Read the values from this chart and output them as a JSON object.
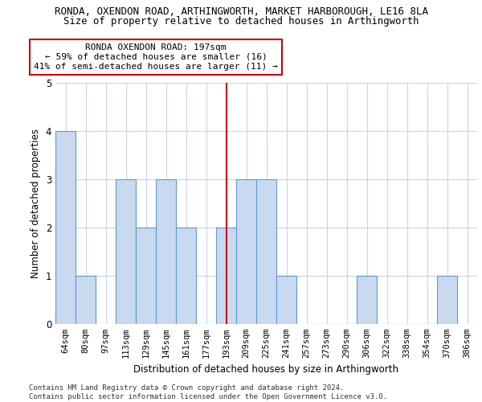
{
  "title_line1": "RONDA, OXENDON ROAD, ARTHINGWORTH, MARKET HARBOROUGH, LE16 8LA",
  "title_line2": "Size of property relative to detached houses in Arthingworth",
  "xlabel": "Distribution of detached houses by size in Arthingworth",
  "ylabel": "Number of detached properties",
  "categories": [
    "64sqm",
    "80sqm",
    "97sqm",
    "113sqm",
    "129sqm",
    "145sqm",
    "161sqm",
    "177sqm",
    "193sqm",
    "209sqm",
    "225sqm",
    "241sqm",
    "257sqm",
    "273sqm",
    "290sqm",
    "306sqm",
    "322sqm",
    "338sqm",
    "354sqm",
    "370sqm",
    "386sqm"
  ],
  "values": [
    4,
    1,
    0,
    3,
    2,
    3,
    2,
    0,
    2,
    3,
    3,
    1,
    0,
    0,
    0,
    1,
    0,
    0,
    0,
    1,
    0
  ],
  "bar_color": "#c9d9f0",
  "bar_edge_color": "#5b9bd5",
  "vline_index": 8,
  "vline_color": "#cc0000",
  "annotation_text": "RONDA OXENDON ROAD: 197sqm\n← 59% of detached houses are smaller (16)\n41% of semi-detached houses are larger (11) →",
  "annot_box_fc": "#ffffff",
  "annot_box_ec": "#cc0000",
  "ylim": [
    0,
    5
  ],
  "yticks": [
    0,
    1,
    2,
    3,
    4,
    5
  ],
  "footer": "Contains HM Land Registry data © Crown copyright and database right 2024.\nContains public sector information licensed under the Open Government Licence v3.0.",
  "bg_color": "#ffffff",
  "grid_color": "#c8d4e8"
}
